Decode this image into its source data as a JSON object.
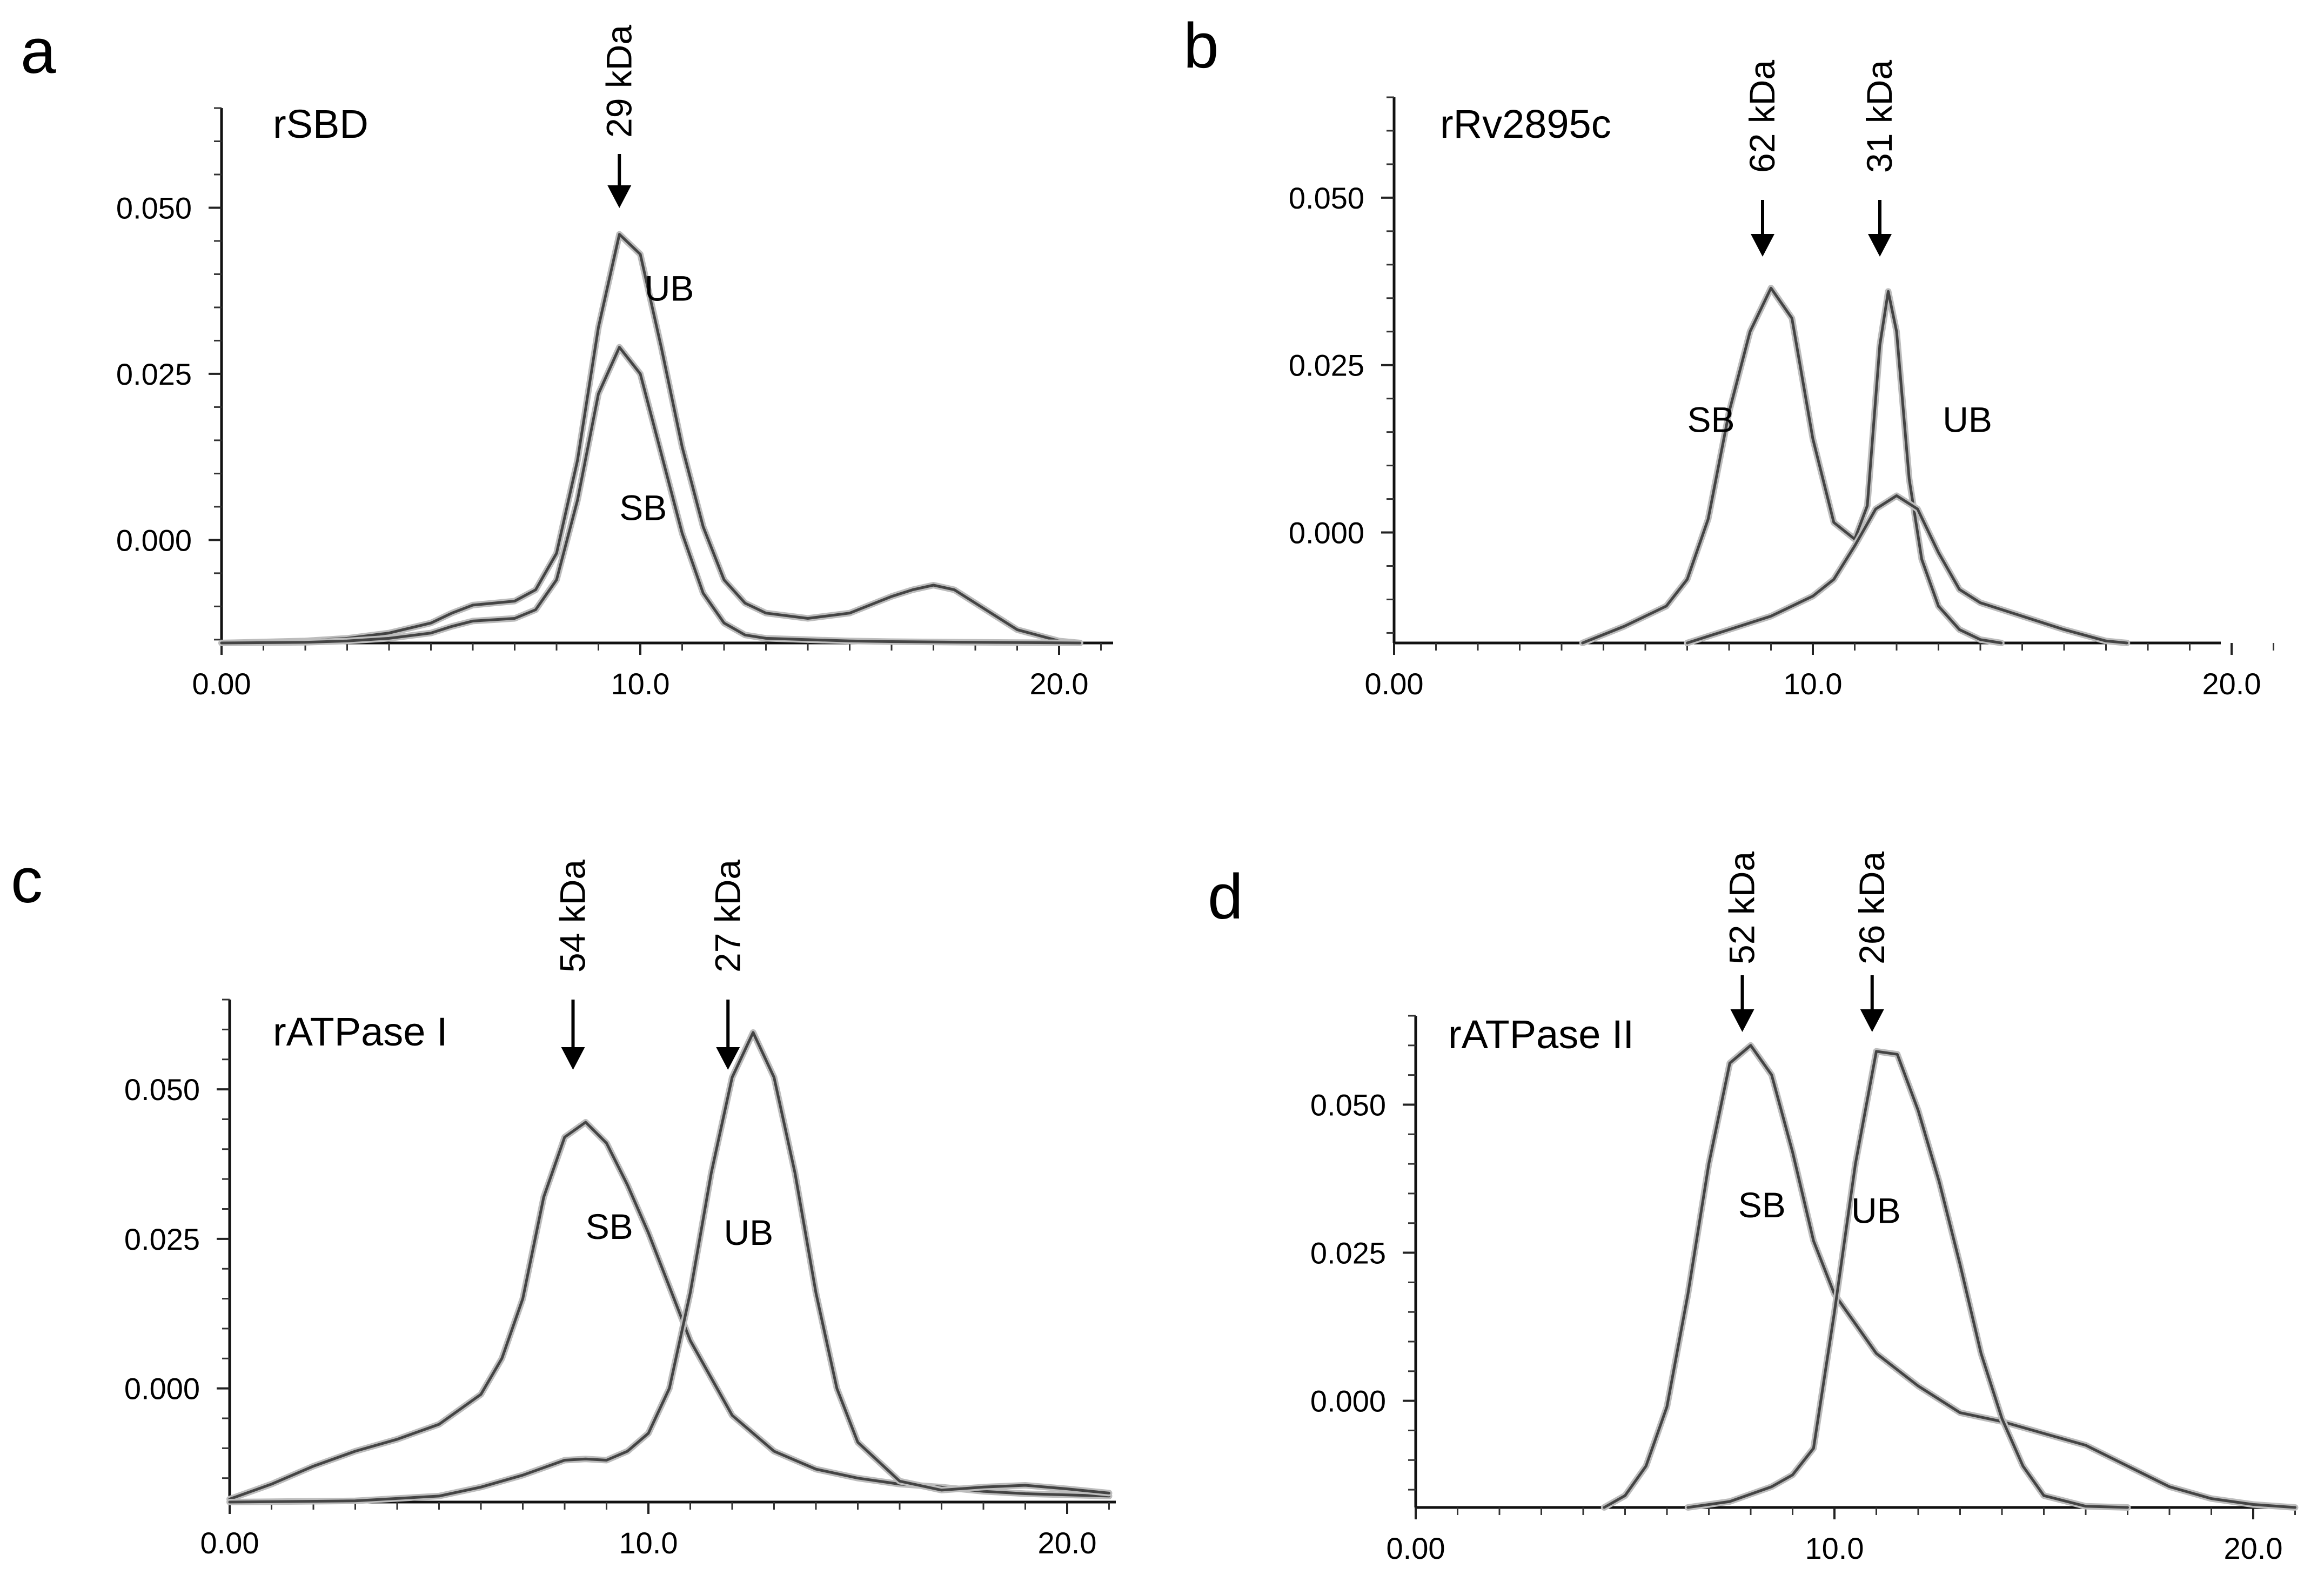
{
  "figure": {
    "colors": {
      "curve": "#444444",
      "axis": "#111111",
      "text": "#000000"
    }
  },
  "chart_data": [
    {
      "type": "line",
      "panel": "a",
      "title": "rSBD",
      "xlabel": "",
      "ylabel": "",
      "xlim": [
        0,
        21
      ],
      "ylim": [
        -0.0155,
        0.065
      ],
      "x_ticks": [
        0,
        10,
        20
      ],
      "x_tick_labels": [
        "0.00",
        "10.0",
        "20.0"
      ],
      "y_ticks": [
        0,
        0.025,
        0.05
      ],
      "y_tick_labels": [
        "0.000",
        "0.025",
        "0.050"
      ],
      "annotations": [
        {
          "text": "29 kDa",
          "x": 9.5
        }
      ],
      "series": [
        {
          "name": "UB",
          "label_at": [
            10.1,
            0.036
          ],
          "x": [
            0,
            2,
            3,
            4,
            5,
            5.5,
            6,
            6.5,
            7,
            7.5,
            8,
            8.5,
            9,
            9.5,
            10,
            10.5,
            11,
            11.5,
            12,
            12.5,
            13,
            14,
            15,
            16,
            16.5,
            17,
            17.5,
            18,
            19,
            20,
            20.5
          ],
          "y": [
            -0.0155,
            -0.0152,
            -0.0148,
            -0.014,
            -0.0125,
            -0.011,
            -0.0098,
            -0.0095,
            -0.0092,
            -0.0075,
            -0.002,
            0.012,
            0.032,
            0.046,
            0.043,
            0.029,
            0.014,
            0.002,
            -0.006,
            -0.0095,
            -0.011,
            -0.0118,
            -0.011,
            -0.0085,
            -0.0075,
            -0.0068,
            -0.0075,
            -0.0095,
            -0.0135,
            -0.0152,
            -0.0155
          ]
        },
        {
          "name": "SB",
          "label_at": [
            9.5,
            0.003
          ],
          "x": [
            0,
            2,
            3,
            4,
            5,
            5.5,
            6,
            6.5,
            7,
            7.5,
            8,
            8.5,
            9,
            9.5,
            10,
            10.5,
            11,
            11.5,
            12,
            12.5,
            13,
            14,
            15,
            16,
            18,
            20.5
          ],
          "y": [
            -0.0155,
            -0.0154,
            -0.0152,
            -0.0148,
            -0.014,
            -0.013,
            -0.0122,
            -0.012,
            -0.0118,
            -0.0105,
            -0.006,
            0.006,
            0.022,
            0.029,
            0.025,
            0.013,
            0.001,
            -0.008,
            -0.0125,
            -0.0143,
            -0.0148,
            -0.015,
            -0.0152,
            -0.0153,
            -0.0154,
            -0.0155
          ]
        }
      ]
    },
    {
      "type": "line",
      "panel": "b",
      "title": "rRv2895c",
      "xlabel": "",
      "ylabel": "",
      "xlim": [
        0,
        21
      ],
      "ylim": [
        -0.0165,
        0.065
      ],
      "x_ticks": [
        0,
        10,
        20
      ],
      "x_tick_labels": [
        "0.00",
        "10.0",
        "20.0"
      ],
      "y_ticks": [
        0,
        0.025,
        0.05
      ],
      "y_tick_labels": [
        "0.000",
        "0.025",
        "0.050"
      ],
      "annotations": [
        {
          "text": "62 kDa",
          "x": 8.8
        },
        {
          "text": "31 kDa",
          "x": 11.6
        }
      ],
      "series": [
        {
          "name": "SB",
          "label_at": [
            7.0,
            0.015
          ],
          "x": [
            4.5,
            5.5,
            6.5,
            7,
            7.5,
            8,
            8.5,
            9,
            9.5,
            10,
            10.5,
            11,
            11.3,
            11.6,
            11.8,
            12,
            12.3,
            12.6,
            13,
            13.5,
            14,
            14.5
          ],
          "y": [
            -0.0165,
            -0.014,
            -0.011,
            -0.007,
            0.002,
            0.018,
            0.03,
            0.0365,
            0.032,
            0.014,
            0.0015,
            -0.001,
            0.004,
            0.028,
            0.036,
            0.03,
            0.008,
            -0.004,
            -0.011,
            -0.0145,
            -0.016,
            -0.0165
          ]
        },
        {
          "name": "UB",
          "label_at": [
            13.1,
            0.015
          ],
          "x": [
            7,
            8,
            9,
            10,
            10.5,
            11,
            11.5,
            12,
            12.5,
            13,
            13.5,
            14,
            15,
            16,
            17,
            17.5
          ],
          "y": [
            -0.0165,
            -0.0145,
            -0.0125,
            -0.0095,
            -0.007,
            -0.002,
            0.0035,
            0.0055,
            0.0035,
            -0.003,
            -0.0085,
            -0.0105,
            -0.0125,
            -0.0145,
            -0.0162,
            -0.0165
          ]
        }
      ]
    },
    {
      "type": "line",
      "panel": "c",
      "title": "rATPase I",
      "xlabel": "",
      "ylabel": "",
      "xlim": [
        0,
        21
      ],
      "ylim": [
        -0.019,
        0.065
      ],
      "x_ticks": [
        0,
        10,
        20
      ],
      "x_tick_labels": [
        "0.00",
        "10.0",
        "20.0"
      ],
      "y_ticks": [
        0,
        0.025,
        0.05
      ],
      "y_tick_labels": [
        "0.000",
        "0.025",
        "0.050"
      ],
      "annotations": [
        {
          "text": "54 kDa",
          "x": 8.2
        },
        {
          "text": "27 kDa",
          "x": 11.9
        }
      ],
      "series": [
        {
          "name": "SB",
          "label_at": [
            8.5,
            0.025
          ],
          "x": [
            0,
            1,
            2,
            3,
            4,
            5,
            6,
            6.5,
            7,
            7.5,
            8,
            8.5,
            9,
            9.5,
            10,
            10.5,
            11,
            12,
            13,
            14,
            15,
            16,
            17,
            18,
            19,
            20,
            21
          ],
          "y": [
            -0.0185,
            -0.016,
            -0.013,
            -0.0105,
            -0.0085,
            -0.006,
            -0.001,
            0.005,
            0.015,
            0.032,
            0.042,
            0.0445,
            0.041,
            0.034,
            0.026,
            0.017,
            0.008,
            -0.0045,
            -0.0105,
            -0.0135,
            -0.015,
            -0.016,
            -0.0165,
            -0.0172,
            -0.0176,
            -0.0178,
            -0.018
          ]
        },
        {
          "name": "UB",
          "label_at": [
            11.8,
            0.024
          ],
          "x": [
            0,
            3,
            5,
            6,
            7,
            8,
            8.5,
            9,
            9.5,
            10,
            10.5,
            11,
            11.5,
            12,
            12.5,
            13,
            13.5,
            14,
            14.5,
            15,
            16,
            17,
            18,
            19,
            20,
            21
          ],
          "y": [
            -0.019,
            -0.0188,
            -0.018,
            -0.0165,
            -0.0145,
            -0.012,
            -0.0118,
            -0.012,
            -0.0105,
            -0.0075,
            0.0,
            0.016,
            0.036,
            0.052,
            0.0595,
            0.052,
            0.036,
            0.016,
            0.0,
            -0.009,
            -0.0155,
            -0.017,
            -0.0165,
            -0.0162,
            -0.0168,
            -0.0175
          ]
        }
      ]
    },
    {
      "type": "line",
      "panel": "d",
      "title": "rATPase II",
      "xlabel": "",
      "ylabel": "",
      "xlim": [
        0,
        21
      ],
      "ylim": [
        -0.018,
        0.065
      ],
      "x_ticks": [
        0,
        10,
        20
      ],
      "x_tick_labels": [
        "0.00",
        "10.0",
        "20.0"
      ],
      "y_ticks": [
        0,
        0.025,
        0.05
      ],
      "y_tick_labels": [
        "0.000",
        "0.025",
        "0.050"
      ],
      "annotations": [
        {
          "text": "52 kDa",
          "x": 7.8
        },
        {
          "text": "26 kDa",
          "x": 10.9
        }
      ],
      "series": [
        {
          "name": "SB",
          "label_at": [
            7.7,
            0.031
          ],
          "x": [
            4.5,
            5,
            5.5,
            6,
            6.5,
            7,
            7.5,
            8,
            8.5,
            9,
            9.5,
            10,
            11,
            12,
            13,
            14,
            15,
            16,
            17,
            18,
            19,
            20,
            21
          ],
          "y": [
            -0.018,
            -0.016,
            -0.011,
            -0.001,
            0.018,
            0.04,
            0.057,
            0.06,
            0.055,
            0.042,
            0.027,
            0.018,
            0.008,
            0.0025,
            -0.002,
            -0.0035,
            -0.0055,
            -0.0075,
            -0.011,
            -0.0145,
            -0.0165,
            -0.0175,
            -0.018
          ]
        },
        {
          "name": "UB",
          "label_at": [
            10.4,
            0.03
          ],
          "x": [
            6.5,
            7.5,
            8.5,
            9,
            9.5,
            10,
            10.5,
            11,
            11.5,
            12,
            12.5,
            13,
            13.5,
            14,
            14.5,
            15,
            16,
            17
          ],
          "y": [
            -0.018,
            -0.017,
            -0.0145,
            -0.0125,
            -0.008,
            0.015,
            0.04,
            0.059,
            0.0585,
            0.049,
            0.037,
            0.023,
            0.008,
            -0.003,
            -0.011,
            -0.016,
            -0.0178,
            -0.018
          ]
        }
      ]
    }
  ]
}
